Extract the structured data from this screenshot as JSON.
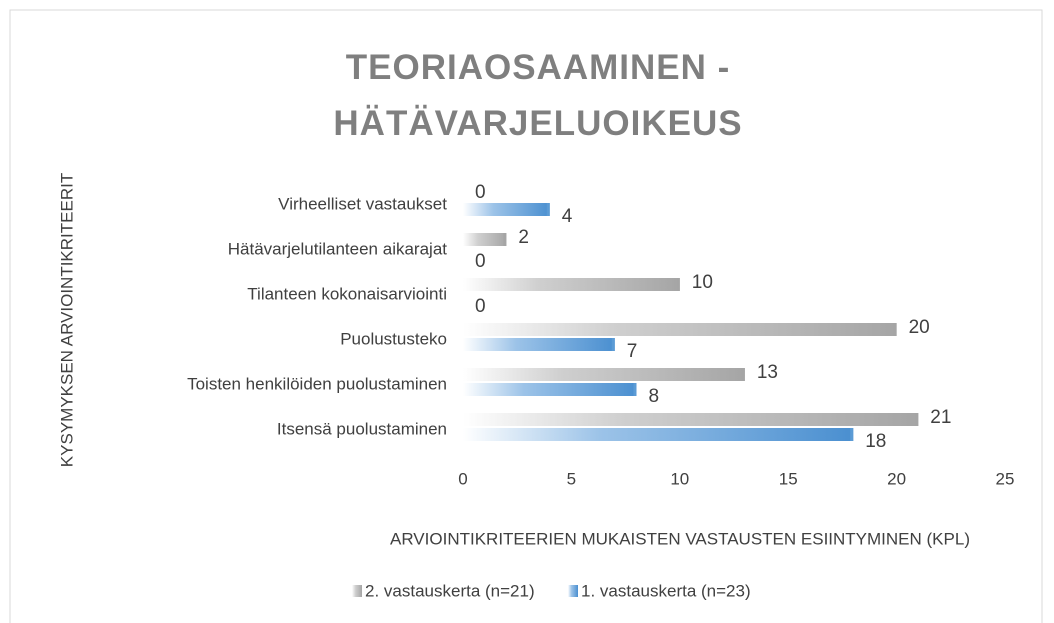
{
  "chart_data": {
    "type": "hbar",
    "title": "TEORIAOSAAMINEN - HÄTÄVARJELUOIKEUS",
    "x_label": "ARVIOINTIKRITEERIEN MUKAISTEN VASTAUSTEN ESIINTYMINEN (KPL)",
    "y_label": "KYSYMYKSEN ARVIOINTIKRITEERIT",
    "categories": [
      "Virheelliset vastaukset",
      "Hätävarjelutilanteen aikarajat",
      "Tilanteen kokonaisarviointi",
      "Puolustusteko",
      "Toisten henkilöiden puolustaminen",
      "Itsensä puolustaminen"
    ],
    "series": [
      {
        "name": "2. vastauskerta (n=21)",
        "color": "#a5a5a5",
        "values": [
          0,
          2,
          10,
          20,
          13,
          21
        ]
      },
      {
        "name": "1. vastauskerta (n=23)",
        "color": "#5b9bd5",
        "values": [
          4,
          0,
          0,
          7,
          8,
          18
        ]
      }
    ],
    "xlim": [
      0,
      25
    ],
    "xticks": [
      0,
      5,
      10,
      15,
      20,
      25
    ],
    "grid": false,
    "legend": "bottom"
  }
}
